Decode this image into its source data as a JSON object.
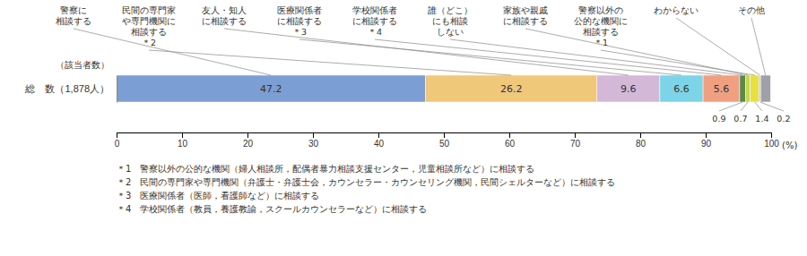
{
  "chart_data": {
    "type": "bar",
    "orientation": "horizontal",
    "stacked": true,
    "categories": [
      "総　数（1,878人）"
    ],
    "y_label": "（該当者数）",
    "x_label": "(%)",
    "xlim": [
      0,
      100
    ],
    "xticks": [
      0,
      10,
      20,
      30,
      40,
      50,
      60,
      70,
      80,
      90,
      100
    ],
    "grid": false,
    "series": [
      {
        "name": "警察に\n相談する",
        "color": "#7b9fd4",
        "values": [
          47.2
        ],
        "data_labels": true
      },
      {
        "name": "民間の専門家\nや専門機関に\n相談する\n＊2",
        "color": "#f0c87a",
        "values": [
          26.2
        ],
        "data_labels": true
      },
      {
        "name": "友人・知人\nに相談する",
        "color": "#d4b8d8",
        "values": [
          9.6
        ],
        "data_labels": true
      },
      {
        "name": "医療関係者\nに相談する\n＊3",
        "color": "#7dd4e8",
        "values": [
          6.6
        ],
        "data_labels": true
      },
      {
        "name": "学校関係者\nに相談する\n＊4",
        "color": "#f0a080",
        "values": [
          5.6
        ],
        "data_labels": true
      },
      {
        "name": "誰（どこ）\nにも相談\nしない",
        "color": "#5a8a4a",
        "values": [
          0.9
        ],
        "data_labels": true
      },
      {
        "name": "家族や親戚\nに相談する",
        "color": "#c8d840",
        "values": [
          0.7
        ],
        "data_labels": true
      },
      {
        "name": "警察以外の\n公的な機関に\n相談する\n＊1",
        "color": "#e8e040",
        "values": [
          1.4
        ],
        "data_labels": true
      },
      {
        "name": "わからない",
        "color": "#c0c0c0",
        "values": [
          0.2
        ],
        "data_labels": true
      },
      {
        "name": "その他",
        "color": "#a0a0a8",
        "values": [
          1.5
        ],
        "data_labels": false
      }
    ],
    "annotations": [
      "＊1　警察以外の公的な機関（婦人相談所，配偶者暴力相談支援センター，児童相談所など）に相談する",
      "＊2　民間の専門家や専門機関（弁護士・弁護士会，カウンセラー・カウンセリング機関，民間シェルターなど）に相談する",
      "＊3　医療関係者（医師，看護師など）に相談する",
      "＊4　学校関係者（教員，養護教諭，スクールカウンセラーなど）に相談する"
    ]
  }
}
